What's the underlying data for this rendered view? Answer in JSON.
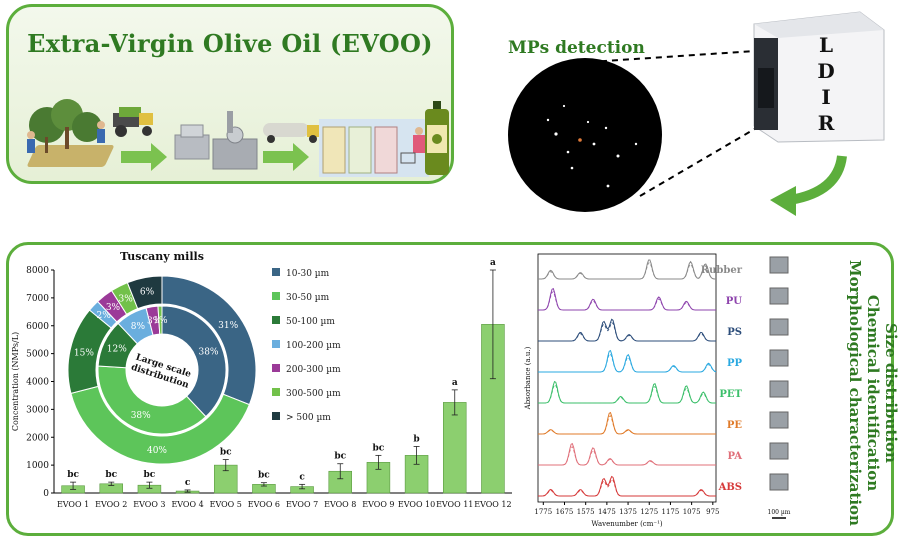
{
  "header": {
    "title": "Extra-Virgin Olive Oil (EVOO)",
    "mps_title": "MPs detection",
    "instrument_letters": [
      "L",
      "D",
      "I",
      "R"
    ]
  },
  "side_labels": [
    "Size distribution",
    "Chemical identification",
    "Morphological characterization"
  ],
  "colors": {
    "accent_green": "#5cae3c",
    "bar_green": "#8ccf6f",
    "dark_green": "#2f7a22"
  },
  "chart_data": [
    {
      "type": "bar",
      "title": "",
      "ylabel": "Concentration (NMPs/L)",
      "xlabel": "",
      "ylim": [
        0,
        8000
      ],
      "yticks": [
        0,
        1000,
        2000,
        3000,
        4000,
        5000,
        6000,
        7000,
        8000
      ],
      "categories": [
        "EVOO 1",
        "EVOO 2",
        "EVOO 3",
        "EVOO 4",
        "EVOO 5",
        "EVOO 6",
        "EVOO 7",
        "EVOO 8",
        "EVOO 9",
        "EVOO 10",
        "EVOO 11",
        "EVOO 12"
      ],
      "values": [
        260,
        330,
        280,
        70,
        1000,
        310,
        230,
        780,
        1100,
        1350,
        3250,
        6050
      ],
      "errors": [
        130,
        60,
        110,
        40,
        200,
        60,
        80,
        270,
        250,
        320,
        450,
        1950
      ],
      "significance": [
        "bc",
        "bc",
        "bc",
        "c",
        "bc",
        "bc",
        "c",
        "bc",
        "bc",
        "b",
        "a",
        "a"
      ]
    },
    {
      "type": "pie",
      "title": "Tuscany mills",
      "center_label": "Large scale distribution",
      "legend": [
        "10-30 µm",
        "30-50 µm",
        "50-100 µm",
        "100-200 µm",
        "200-300 µm",
        "300-500 µm",
        "> 500 µm"
      ],
      "colors": [
        "#3a6585",
        "#5dc55a",
        "#2b7a38",
        "#6aaede",
        "#9b3a98",
        "#72c14a",
        "#1f3a40"
      ],
      "outer_ring_tuscany": [
        31,
        40,
        15,
        2,
        3,
        3,
        6
      ],
      "inner_ring_large_scale": [
        38,
        38,
        12,
        8,
        3,
        1,
        0
      ],
      "outer_labels": [
        "31%",
        "40%",
        "15%",
        "2%",
        "3%",
        "3%",
        "6%"
      ],
      "inner_labels": [
        "38%",
        "38%",
        "12%",
        "8%",
        "3%",
        "1%"
      ]
    },
    {
      "type": "line",
      "title": "",
      "xlabel": "Wavenumber (cm⁻¹)",
      "ylabel": "Absorbance (a.u.)",
      "xlim": [
        1800,
        960
      ],
      "xticks": [
        1775,
        1675,
        1575,
        1475,
        1375,
        1275,
        1175,
        1075,
        975
      ],
      "series_names": [
        "Rubber",
        "PU",
        "PS",
        "PP",
        "PET",
        "PE",
        "PA",
        "ABS"
      ],
      "series_colors": [
        "#8a8a8a",
        "#8e44ad",
        "#2c4d7a",
        "#29a8e0",
        "#3bbf6a",
        "#e07b2a",
        "#e0707a",
        "#d63a3a"
      ],
      "scale_bar": "100 µm"
    }
  ]
}
